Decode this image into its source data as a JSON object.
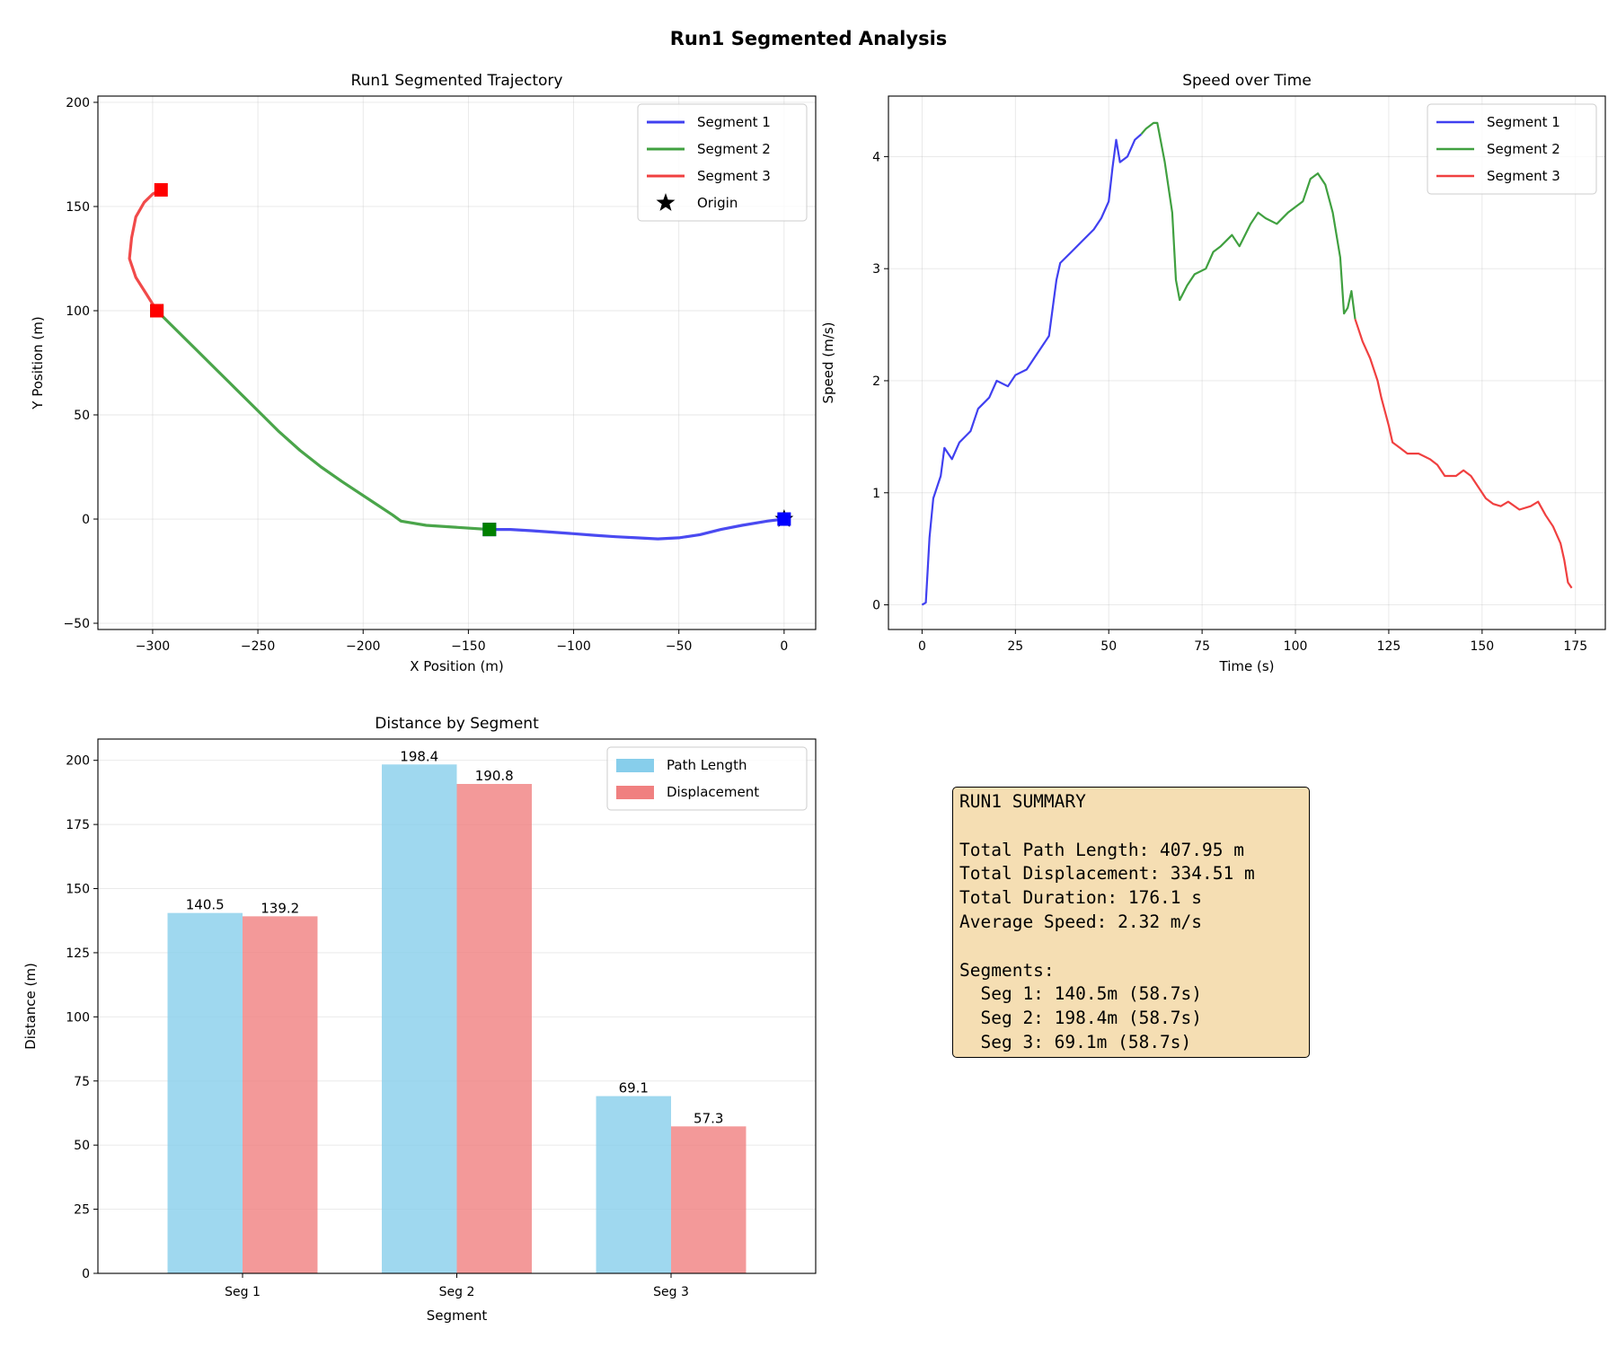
{
  "figure_title": "Run1 Segmented Analysis",
  "colors": {
    "segment1": "#4040f0",
    "segment2": "#40a040",
    "segment3": "#f04040",
    "path_length": "#87ceeb",
    "displacement": "#f08080",
    "summary_bg": "#f5deb3"
  },
  "chart_data": [
    {
      "type": "line",
      "title": "Run1 Segmented Trajectory",
      "xlabel": "X Position (m)",
      "ylabel": "Y Position (m)",
      "xlim": [
        -326,
        15
      ],
      "ylim": [
        -53,
        203
      ],
      "xticks": [
        -300,
        -250,
        -200,
        -150,
        -100,
        -50,
        0
      ],
      "yticks": [
        -50,
        0,
        50,
        100,
        150,
        200
      ],
      "grid": true,
      "legend_position": "top-right",
      "series": [
        {
          "name": "Segment 1",
          "color": "#4040f0",
          "points": [
            [
              0,
              0
            ],
            [
              -8,
              -1
            ],
            [
              -20,
              -3
            ],
            [
              -30,
              -5
            ],
            [
              -40,
              -7.5
            ],
            [
              -50,
              -9
            ],
            [
              -60,
              -9.5
            ],
            [
              -70,
              -9
            ],
            [
              -80,
              -8.5
            ],
            [
              -90,
              -7.8
            ],
            [
              -100,
              -7
            ],
            [
              -110,
              -6.3
            ],
            [
              -120,
              -5.6
            ],
            [
              -130,
              -5
            ],
            [
              -140,
              -5
            ]
          ]
        },
        {
          "name": "Segment 2",
          "color": "#40a040",
          "points": [
            [
              -140,
              -5
            ],
            [
              -155,
              -4
            ],
            [
              -170,
              -3
            ],
            [
              -182,
              -1
            ],
            [
              -186,
              2
            ],
            [
              -195,
              8
            ],
            [
              -210,
              18
            ],
            [
              -220,
              25
            ],
            [
              -230,
              33
            ],
            [
              -240,
              42
            ],
            [
              -250,
              52
            ],
            [
              -260,
              62
            ],
            [
              -270,
              72
            ],
            [
              -280,
              82
            ],
            [
              -290,
              92
            ],
            [
              -298,
              100
            ]
          ]
        },
        {
          "name": "Segment 3",
          "color": "#f04040",
          "points": [
            [
              -298,
              100
            ],
            [
              -303,
              108
            ],
            [
              -308,
              116
            ],
            [
              -311,
              125
            ],
            [
              -310,
              135
            ],
            [
              -308,
              145
            ],
            [
              -304,
              152
            ],
            [
              -300,
              156
            ],
            [
              -296,
              158
            ]
          ]
        }
      ],
      "markers": [
        {
          "name": "Origin",
          "shape": "star",
          "color": "#000000",
          "x": 0,
          "y": 0
        },
        {
          "shape": "square",
          "color": "#0000ff",
          "x": 0,
          "y": 0
        },
        {
          "shape": "square",
          "color": "#0000ff",
          "x": -140,
          "y": -5
        },
        {
          "shape": "square",
          "color": "#008000",
          "x": -140,
          "y": -5
        },
        {
          "shape": "square",
          "color": "#008000",
          "x": -298,
          "y": 100
        },
        {
          "shape": "square",
          "color": "#ff0000",
          "x": -298,
          "y": 100
        },
        {
          "shape": "square",
          "color": "#ff0000",
          "x": -296,
          "y": 158
        }
      ],
      "legend": [
        "Segment 1",
        "Segment 2",
        "Segment 3",
        "Origin"
      ]
    },
    {
      "type": "line",
      "title": "Speed over Time",
      "xlabel": "Time (s)",
      "ylabel": "Speed (m/s)",
      "xlim": [
        -9,
        183
      ],
      "ylim": [
        -0.22,
        4.54
      ],
      "xticks": [
        0,
        25,
        50,
        75,
        100,
        125,
        150,
        175
      ],
      "yticks": [
        0,
        1,
        2,
        3,
        4
      ],
      "grid": true,
      "legend_position": "top-right",
      "series": [
        {
          "name": "Segment 1",
          "color": "#4040f0",
          "points": [
            [
              0,
              0
            ],
            [
              1,
              0.02
            ],
            [
              1.5,
              0.3
            ],
            [
              2,
              0.6
            ],
            [
              3,
              0.95
            ],
            [
              5,
              1.15
            ],
            [
              6,
              1.4
            ],
            [
              8,
              1.3
            ],
            [
              10,
              1.45
            ],
            [
              13,
              1.55
            ],
            [
              15,
              1.75
            ],
            [
              18,
              1.85
            ],
            [
              20,
              2.0
            ],
            [
              23,
              1.95
            ],
            [
              25,
              2.05
            ],
            [
              28,
              2.1
            ],
            [
              30,
              2.2
            ],
            [
              33,
              2.35
            ],
            [
              34,
              2.4
            ],
            [
              36,
              2.9
            ],
            [
              37,
              3.05
            ],
            [
              40,
              3.15
            ],
            [
              43,
              3.25
            ],
            [
              46,
              3.35
            ],
            [
              48,
              3.45
            ],
            [
              50,
              3.6
            ],
            [
              51,
              3.9
            ],
            [
              52,
              4.15
            ],
            [
              53,
              3.95
            ],
            [
              55,
              4.0
            ],
            [
              57,
              4.15
            ],
            [
              58.7,
              4.2
            ]
          ]
        },
        {
          "name": "Segment 2",
          "color": "#40a040",
          "points": [
            [
              58.7,
              4.2
            ],
            [
              60,
              4.25
            ],
            [
              62,
              4.3
            ],
            [
              63,
              4.3
            ],
            [
              65,
              3.95
            ],
            [
              67,
              3.5
            ],
            [
              68,
              2.9
            ],
            [
              69,
              2.72
            ],
            [
              71,
              2.85
            ],
            [
              73,
              2.95
            ],
            [
              76,
              3.0
            ],
            [
              78,
              3.15
            ],
            [
              80,
              3.2
            ],
            [
              83,
              3.3
            ],
            [
              85,
              3.2
            ],
            [
              88,
              3.4
            ],
            [
              90,
              3.5
            ],
            [
              92,
              3.45
            ],
            [
              95,
              3.4
            ],
            [
              98,
              3.5
            ],
            [
              100,
              3.55
            ],
            [
              102,
              3.6
            ],
            [
              104,
              3.8
            ],
            [
              106,
              3.85
            ],
            [
              108,
              3.75
            ],
            [
              110,
              3.5
            ],
            [
              112,
              3.1
            ],
            [
              113,
              2.6
            ],
            [
              114,
              2.65
            ],
            [
              115,
              2.8
            ],
            [
              116,
              2.55
            ]
          ]
        },
        {
          "name": "Segment 3",
          "color": "#f04040",
          "points": [
            [
              116,
              2.55
            ],
            [
              118,
              2.35
            ],
            [
              120,
              2.2
            ],
            [
              122,
              2.0
            ],
            [
              123,
              1.85
            ],
            [
              125,
              1.6
            ],
            [
              126,
              1.45
            ],
            [
              128,
              1.4
            ],
            [
              130,
              1.35
            ],
            [
              133,
              1.35
            ],
            [
              136,
              1.3
            ],
            [
              138,
              1.25
            ],
            [
              140,
              1.15
            ],
            [
              143,
              1.15
            ],
            [
              145,
              1.2
            ],
            [
              147,
              1.15
            ],
            [
              149,
              1.05
            ],
            [
              151,
              0.95
            ],
            [
              153,
              0.9
            ],
            [
              155,
              0.88
            ],
            [
              157,
              0.92
            ],
            [
              160,
              0.85
            ],
            [
              163,
              0.88
            ],
            [
              165,
              0.92
            ],
            [
              167,
              0.8
            ],
            [
              169,
              0.7
            ],
            [
              171,
              0.55
            ],
            [
              172,
              0.4
            ],
            [
              173,
              0.2
            ],
            [
              174,
              0.15
            ]
          ]
        }
      ],
      "legend": [
        "Segment 1",
        "Segment 2",
        "Segment 3"
      ]
    },
    {
      "type": "bar",
      "title": "Distance by Segment",
      "xlabel": "Segment",
      "ylabel": "Distance (m)",
      "categories": [
        "Seg 1",
        "Seg 2",
        "Seg 3"
      ],
      "ylim": [
        0,
        208.3
      ],
      "yticks": [
        0,
        25,
        50,
        75,
        100,
        125,
        150,
        175,
        200
      ],
      "grid": true,
      "legend_position": "top-right",
      "series": [
        {
          "name": "Path Length",
          "color": "#87ceeb",
          "values": [
            140.5,
            198.4,
            69.1
          ],
          "labels": [
            "140.5",
            "198.4",
            "69.1"
          ]
        },
        {
          "name": "Displacement",
          "color": "#f08080",
          "values": [
            139.2,
            190.8,
            57.3
          ],
          "labels": [
            "139.2",
            "190.8",
            "57.3"
          ]
        }
      ],
      "legend": [
        "Path Length",
        "Displacement"
      ]
    }
  ],
  "summary": {
    "heading": "RUN1 SUMMARY",
    "lines": [
      "Total Path Length: 407.95 m",
      "Total Displacement: 334.51 m",
      "Total Duration: 176.1 s",
      "Average Speed: 2.32 m/s"
    ],
    "segments_heading": "Segments:",
    "segments": [
      "  Seg 1: 140.5m (58.7s)",
      "  Seg 2: 198.4m (58.7s)",
      "  Seg 3: 69.1m (58.7s)"
    ]
  }
}
